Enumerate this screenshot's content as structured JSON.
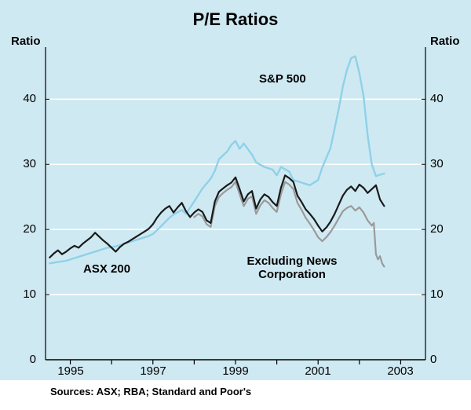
{
  "chart_data": {
    "type": "line",
    "title": "P/E Ratios",
    "ylabel_left": "Ratio",
    "ylabel_right": "Ratio",
    "source": "Sources: ASX; RBA; Standard and Poor's",
    "background_color": "#cfe9f2",
    "gridline_color": "#ffffff",
    "x_range": [
      1994.4,
      2003.6
    ],
    "y_range": [
      0,
      48
    ],
    "gridlines": [
      10,
      20,
      30,
      40
    ],
    "ytick_values": [
      "0",
      "10",
      "20",
      "30",
      "40"
    ],
    "xtick_years": [
      1995,
      1996,
      1997,
      1998,
      1999,
      2000,
      2001,
      2002,
      2003
    ],
    "xtick_labels": [
      "1995",
      "1997",
      "1999",
      "2001",
      "2003"
    ],
    "xtick_label_years": [
      1995,
      1997,
      1999,
      2001,
      2003
    ],
    "legend_position": "inline-annotations",
    "annotations": [
      {
        "text": "S&P 500"
      },
      {
        "text": "ASX 200"
      },
      {
        "text": "Excluding News\nCorporation"
      }
    ],
    "series": [
      {
        "name": "S&P 500",
        "color": "#8fd1e8",
        "width": 2.4,
        "points": [
          [
            1994.5,
            14.8
          ],
          [
            1994.7,
            15.0
          ],
          [
            1994.9,
            15.2
          ],
          [
            1995.1,
            15.6
          ],
          [
            1995.3,
            16.0
          ],
          [
            1995.5,
            16.4
          ],
          [
            1995.7,
            16.8
          ],
          [
            1995.9,
            17.2
          ],
          [
            1996.1,
            17.4
          ],
          [
            1996.3,
            17.8
          ],
          [
            1996.5,
            18.2
          ],
          [
            1996.7,
            18.6
          ],
          [
            1996.9,
            19.0
          ],
          [
            1997.0,
            19.3
          ],
          [
            1997.2,
            20.5
          ],
          [
            1997.4,
            21.8
          ],
          [
            1997.5,
            22.3
          ],
          [
            1997.7,
            23.0
          ],
          [
            1997.8,
            22.4
          ],
          [
            1998.0,
            24.3
          ],
          [
            1998.2,
            26.3
          ],
          [
            1998.4,
            27.8
          ],
          [
            1998.5,
            29.0
          ],
          [
            1998.6,
            30.8
          ],
          [
            1998.8,
            32.0
          ],
          [
            1998.9,
            33.0
          ],
          [
            1999.0,
            33.6
          ],
          [
            1999.1,
            32.4
          ],
          [
            1999.2,
            33.2
          ],
          [
            1999.4,
            31.5
          ],
          [
            1999.5,
            30.3
          ],
          [
            1999.7,
            29.6
          ],
          [
            1999.9,
            29.2
          ],
          [
            2000.0,
            28.3
          ],
          [
            2000.1,
            29.6
          ],
          [
            2000.3,
            28.9
          ],
          [
            2000.4,
            27.6
          ],
          [
            2000.6,
            27.2
          ],
          [
            2000.8,
            26.8
          ],
          [
            2000.9,
            27.2
          ],
          [
            2001.0,
            27.6
          ],
          [
            2001.1,
            29.5
          ],
          [
            2001.3,
            32.5
          ],
          [
            2001.4,
            35.5
          ],
          [
            2001.5,
            38.5
          ],
          [
            2001.6,
            42.0
          ],
          [
            2001.7,
            44.5
          ],
          [
            2001.8,
            46.3
          ],
          [
            2001.9,
            46.6
          ],
          [
            2002.0,
            44.0
          ],
          [
            2002.1,
            40.5
          ],
          [
            2002.2,
            34.5
          ],
          [
            2002.3,
            30.0
          ],
          [
            2002.4,
            28.2
          ],
          [
            2002.5,
            28.4
          ],
          [
            2002.6,
            28.6
          ]
        ]
      },
      {
        "name": "Excluding News Corporation",
        "color": "#9a9a9a",
        "width": 2.2,
        "points": [
          [
            1998.0,
            21.9
          ],
          [
            1998.1,
            22.4
          ],
          [
            1998.2,
            22.0
          ],
          [
            1998.3,
            20.8
          ],
          [
            1998.4,
            20.4
          ],
          [
            1998.5,
            23.6
          ],
          [
            1998.6,
            25.0
          ],
          [
            1998.7,
            25.6
          ],
          [
            1998.8,
            26.1
          ],
          [
            1998.9,
            26.5
          ],
          [
            1999.0,
            27.3
          ],
          [
            1999.1,
            25.4
          ],
          [
            1999.2,
            23.6
          ],
          [
            1999.3,
            24.7
          ],
          [
            1999.4,
            25.1
          ],
          [
            1999.5,
            22.4
          ],
          [
            1999.6,
            23.7
          ],
          [
            1999.7,
            24.5
          ],
          [
            1999.8,
            24.1
          ],
          [
            1999.9,
            23.3
          ],
          [
            2000.0,
            22.7
          ],
          [
            2000.1,
            25.4
          ],
          [
            2000.2,
            27.3
          ],
          [
            2000.3,
            26.9
          ],
          [
            2000.4,
            26.2
          ],
          [
            2000.5,
            24.1
          ],
          [
            2000.6,
            23.0
          ],
          [
            2000.7,
            21.8
          ],
          [
            2000.8,
            20.9
          ],
          [
            2000.9,
            19.9
          ],
          [
            2001.0,
            18.8
          ],
          [
            2001.1,
            18.2
          ],
          [
            2001.2,
            18.8
          ],
          [
            2001.3,
            19.6
          ],
          [
            2001.4,
            20.6
          ],
          [
            2001.5,
            21.7
          ],
          [
            2001.6,
            22.8
          ],
          [
            2001.7,
            23.3
          ],
          [
            2001.8,
            23.6
          ],
          [
            2001.9,
            22.9
          ],
          [
            2002.0,
            23.4
          ],
          [
            2002.1,
            22.6
          ],
          [
            2002.2,
            21.4
          ],
          [
            2002.3,
            20.6
          ],
          [
            2002.35,
            21.0
          ],
          [
            2002.4,
            16.2
          ],
          [
            2002.45,
            15.4
          ],
          [
            2002.5,
            15.9
          ],
          [
            2002.55,
            14.8
          ],
          [
            2002.6,
            14.3
          ]
        ]
      },
      {
        "name": "ASX 200",
        "color": "#1a1a1a",
        "width": 2.2,
        "points": [
          [
            1994.5,
            15.7
          ],
          [
            1994.6,
            16.3
          ],
          [
            1994.7,
            16.8
          ],
          [
            1994.8,
            16.2
          ],
          [
            1994.9,
            16.6
          ],
          [
            1995.0,
            17.1
          ],
          [
            1995.1,
            17.5
          ],
          [
            1995.2,
            17.2
          ],
          [
            1995.3,
            17.8
          ],
          [
            1995.4,
            18.3
          ],
          [
            1995.5,
            18.8
          ],
          [
            1995.6,
            19.5
          ],
          [
            1995.7,
            18.9
          ],
          [
            1995.8,
            18.3
          ],
          [
            1995.9,
            17.8
          ],
          [
            1996.0,
            17.2
          ],
          [
            1996.1,
            16.6
          ],
          [
            1996.2,
            17.3
          ],
          [
            1996.3,
            17.8
          ],
          [
            1996.4,
            18.1
          ],
          [
            1996.5,
            18.5
          ],
          [
            1996.6,
            18.9
          ],
          [
            1996.7,
            19.3
          ],
          [
            1996.8,
            19.7
          ],
          [
            1996.9,
            20.1
          ],
          [
            1997.0,
            20.8
          ],
          [
            1997.1,
            21.8
          ],
          [
            1997.2,
            22.6
          ],
          [
            1997.3,
            23.2
          ],
          [
            1997.4,
            23.6
          ],
          [
            1997.5,
            22.6
          ],
          [
            1997.6,
            23.4
          ],
          [
            1997.7,
            24.1
          ],
          [
            1997.8,
            22.8
          ],
          [
            1997.9,
            21.9
          ],
          [
            1998.0,
            22.6
          ],
          [
            1998.1,
            23.1
          ],
          [
            1998.2,
            22.7
          ],
          [
            1998.3,
            21.4
          ],
          [
            1998.4,
            21.0
          ],
          [
            1998.5,
            24.3
          ],
          [
            1998.6,
            25.8
          ],
          [
            1998.7,
            26.3
          ],
          [
            1998.8,
            26.8
          ],
          [
            1998.9,
            27.2
          ],
          [
            1999.0,
            28.0
          ],
          [
            1999.1,
            26.2
          ],
          [
            1999.2,
            24.3
          ],
          [
            1999.3,
            25.4
          ],
          [
            1999.4,
            25.9
          ],
          [
            1999.5,
            23.2
          ],
          [
            1999.6,
            24.6
          ],
          [
            1999.7,
            25.4
          ],
          [
            1999.8,
            25.0
          ],
          [
            1999.9,
            24.2
          ],
          [
            2000.0,
            23.6
          ],
          [
            2000.1,
            26.4
          ],
          [
            2000.2,
            28.3
          ],
          [
            2000.3,
            27.9
          ],
          [
            2000.4,
            27.3
          ],
          [
            2000.5,
            25.2
          ],
          [
            2000.6,
            24.2
          ],
          [
            2000.7,
            23.1
          ],
          [
            2000.8,
            22.4
          ],
          [
            2000.9,
            21.6
          ],
          [
            2001.0,
            20.6
          ],
          [
            2001.1,
            19.7
          ],
          [
            2001.2,
            20.3
          ],
          [
            2001.3,
            21.2
          ],
          [
            2001.4,
            22.4
          ],
          [
            2001.5,
            23.8
          ],
          [
            2001.6,
            25.2
          ],
          [
            2001.7,
            26.1
          ],
          [
            2001.8,
            26.6
          ],
          [
            2001.9,
            25.9
          ],
          [
            2002.0,
            26.9
          ],
          [
            2002.1,
            26.4
          ],
          [
            2002.2,
            25.6
          ],
          [
            2002.3,
            26.2
          ],
          [
            2002.4,
            26.8
          ],
          [
            2002.5,
            24.6
          ],
          [
            2002.6,
            23.6
          ]
        ]
      }
    ]
  }
}
